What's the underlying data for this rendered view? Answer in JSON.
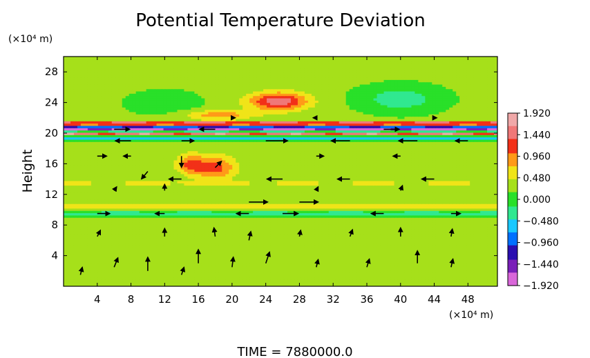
{
  "chart_data": {
    "type": "heatmap",
    "title": "Potential Temperature Deviation",
    "xlabel": "",
    "ylabel": "Height",
    "x_unit": "(×10⁴ m)",
    "y_unit": "(×10⁴ m)",
    "xlim": [
      0,
      51.5
    ],
    "ylim": [
      0,
      30
    ],
    "x_ticks": [
      4,
      8,
      12,
      16,
      20,
      24,
      28,
      32,
      36,
      40,
      44,
      48
    ],
    "y_ticks": [
      4,
      8,
      12,
      16,
      20,
      24,
      28
    ],
    "x_tick_labels": [
      "4",
      "8",
      "12",
      "16",
      "20",
      "24",
      "28",
      "32",
      "36",
      "40",
      "44",
      "48"
    ],
    "y_tick_labels": [
      "4",
      "8",
      "12",
      "16",
      "20",
      "24",
      "28"
    ],
    "background_value": 0.2,
    "colorbar": {
      "min": -1.92,
      "max": 1.92,
      "tick_values": [
        1.92,
        1.44,
        0.96,
        0.48,
        0.0,
        -0.48,
        -0.96,
        -1.44,
        -1.92
      ],
      "tick_labels": [
        "1.920",
        "1.440",
        "0.960",
        "0.480",
        "0.000",
        "−0.480",
        "−0.960",
        "−1.440",
        "−1.920"
      ],
      "colors": [
        "#d966d9",
        "#7a1fb8",
        "#2a0fb0",
        "#0070ff",
        "#19c8ff",
        "#30e890",
        "#29e029",
        "#a6e01a",
        "#f0e418",
        "#ff9a18",
        "#f23018",
        "#f07878",
        "#f0a8a8"
      ]
    },
    "features": [
      {
        "kind": "warm_blob",
        "x": 25.5,
        "y": 24.2,
        "dx": 3.5,
        "dy": 1.2,
        "value": 1.35
      },
      {
        "kind": "warm_blob",
        "x": 18.5,
        "y": 22.4,
        "dx": 4.0,
        "dy": 0.6,
        "value": 0.75
      },
      {
        "kind": "cold_blob",
        "x": 40.0,
        "y": 24.5,
        "dx": 4.5,
        "dy": 1.6,
        "value": -0.55
      },
      {
        "kind": "cold_blob",
        "x": 12.0,
        "y": 24.0,
        "dx": 4.0,
        "dy": 1.5,
        "value": -0.25
      },
      {
        "kind": "warm_band",
        "y": 21.3,
        "dy": 0.25,
        "value": 1.8
      },
      {
        "kind": "cold_band",
        "y": 20.6,
        "dy": 0.35,
        "value": -1.85
      },
      {
        "kind": "warm_band",
        "y": 20.0,
        "dy": 0.22,
        "value": 1.6
      },
      {
        "kind": "cold_band",
        "y": 19.4,
        "dy": 0.25,
        "value": -0.6
      },
      {
        "kind": "warm_blob",
        "x": 18.0,
        "y": 15.5,
        "dx": 2.5,
        "dy": 1.6,
        "value": 0.95
      },
      {
        "kind": "warm_blob",
        "x": 15.0,
        "y": 16.0,
        "dx": 1.6,
        "dy": 1.3,
        "value": 0.85
      },
      {
        "kind": "warm_band",
        "y": 10.5,
        "dy": 0.45,
        "value": 0.7
      },
      {
        "kind": "cold_band",
        "y": 9.5,
        "dy": 0.4,
        "value": -0.35
      },
      {
        "kind": "warm_band",
        "y": 13.5,
        "dy": 0.35,
        "value": 0.5
      }
    ],
    "wind_vectors": [
      {
        "x": 2,
        "y": 1.5,
        "u": 0.3,
        "v": 1.2
      },
      {
        "x": 6,
        "y": 2.5,
        "u": 0.6,
        "v": 1.5
      },
      {
        "x": 10,
        "y": 2.0,
        "u": 0.0,
        "v": 2.2
      },
      {
        "x": 14,
        "y": 1.5,
        "u": 0.4,
        "v": 1.2
      },
      {
        "x": 16,
        "y": 3.0,
        "u": 0.0,
        "v": 2.2
      },
      {
        "x": 20,
        "y": 2.5,
        "u": 0.2,
        "v": 1.6
      },
      {
        "x": 24,
        "y": 3.0,
        "u": 0.6,
        "v": 1.8
      },
      {
        "x": 30,
        "y": 2.5,
        "u": 0.3,
        "v": 1.2
      },
      {
        "x": 36,
        "y": 2.5,
        "u": 0.4,
        "v": 1.3
      },
      {
        "x": 42,
        "y": 3.0,
        "u": 0.0,
        "v": 2.0
      },
      {
        "x": 46,
        "y": 2.5,
        "u": 0.3,
        "v": 1.3
      },
      {
        "x": 4,
        "y": 6.5,
        "u": 0.5,
        "v": 1.0
      },
      {
        "x": 12,
        "y": 6.5,
        "u": 0.0,
        "v": 1.3
      },
      {
        "x": 18,
        "y": 6.5,
        "u": -0.2,
        "v": 1.4
      },
      {
        "x": 22,
        "y": 6.0,
        "u": 0.3,
        "v": 1.4
      },
      {
        "x": 28,
        "y": 6.5,
        "u": 0.2,
        "v": 1.0
      },
      {
        "x": 34,
        "y": 6.5,
        "u": 0.4,
        "v": 1.1
      },
      {
        "x": 40,
        "y": 6.5,
        "u": 0.0,
        "v": 1.4
      },
      {
        "x": 46,
        "y": 6.5,
        "u": 0.2,
        "v": 1.2
      },
      {
        "x": 4,
        "y": 9.5,
        "u": 2.0,
        "v": 0.0
      },
      {
        "x": 12,
        "y": 9.5,
        "u": -1.5,
        "v": 0.0
      },
      {
        "x": 22,
        "y": 9.5,
        "u": -2.0,
        "v": 0.0
      },
      {
        "x": 26,
        "y": 9.5,
        "u": 2.5,
        "v": 0.0
      },
      {
        "x": 38,
        "y": 9.5,
        "u": -2.0,
        "v": 0.0
      },
      {
        "x": 46,
        "y": 9.5,
        "u": 1.5,
        "v": 0.0
      },
      {
        "x": 22,
        "y": 11.0,
        "u": 3.0,
        "v": 0.0
      },
      {
        "x": 28,
        "y": 11.0,
        "u": 3.0,
        "v": 0.0
      },
      {
        "x": 6,
        "y": 12.5,
        "u": 0.4,
        "v": 0.6
      },
      {
        "x": 12,
        "y": 12.5,
        "u": 0.0,
        "v": 1.0
      },
      {
        "x": 30,
        "y": 12.5,
        "u": 0.3,
        "v": 0.6
      },
      {
        "x": 40,
        "y": 12.5,
        "u": 0.3,
        "v": 0.8
      },
      {
        "x": 14,
        "y": 14.0,
        "u": -2.0,
        "v": 0.0
      },
      {
        "x": 26,
        "y": 14.0,
        "u": -2.5,
        "v": 0.0
      },
      {
        "x": 34,
        "y": 14.0,
        "u": -2.0,
        "v": 0.0
      },
      {
        "x": 44,
        "y": 14.0,
        "u": -2.0,
        "v": 0.0
      },
      {
        "x": 10,
        "y": 15.0,
        "u": -1.0,
        "v": -1.2
      },
      {
        "x": 18,
        "y": 15.5,
        "u": 1.0,
        "v": 1.0
      },
      {
        "x": 14,
        "y": 17.0,
        "u": 0.0,
        "v": -1.8
      },
      {
        "x": 4,
        "y": 17.0,
        "u": 1.5,
        "v": 0.0
      },
      {
        "x": 8,
        "y": 17.0,
        "u": -1.2,
        "v": 0.0
      },
      {
        "x": 30,
        "y": 17.0,
        "u": 1.2,
        "v": 0.0
      },
      {
        "x": 40,
        "y": 17.0,
        "u": -1.2,
        "v": 0.0
      },
      {
        "x": 8,
        "y": 19.0,
        "u": -2.5,
        "v": 0.0
      },
      {
        "x": 14,
        "y": 19.0,
        "u": 2.0,
        "v": 0.0
      },
      {
        "x": 24,
        "y": 19.0,
        "u": 3.5,
        "v": 0.0
      },
      {
        "x": 34,
        "y": 19.0,
        "u": -3.0,
        "v": 0.0
      },
      {
        "x": 42,
        "y": 19.0,
        "u": -3.0,
        "v": 0.0
      },
      {
        "x": 48,
        "y": 19.0,
        "u": -2.0,
        "v": 0.0
      },
      {
        "x": 6,
        "y": 20.5,
        "u": 2.5,
        "v": 0.0
      },
      {
        "x": 18,
        "y": 20.5,
        "u": -2.5,
        "v": 0.0
      },
      {
        "x": 38,
        "y": 20.5,
        "u": 2.5,
        "v": 0.0
      },
      {
        "x": 20,
        "y": 22.0,
        "u": 0.5,
        "v": 0.0
      },
      {
        "x": 30,
        "y": 22.0,
        "u": -0.5,
        "v": 0.0
      },
      {
        "x": 44,
        "y": 22.0,
        "u": 0.4,
        "v": 0.0
      }
    ],
    "time_label": "TIME",
    "time_value": "7880000.0"
  }
}
